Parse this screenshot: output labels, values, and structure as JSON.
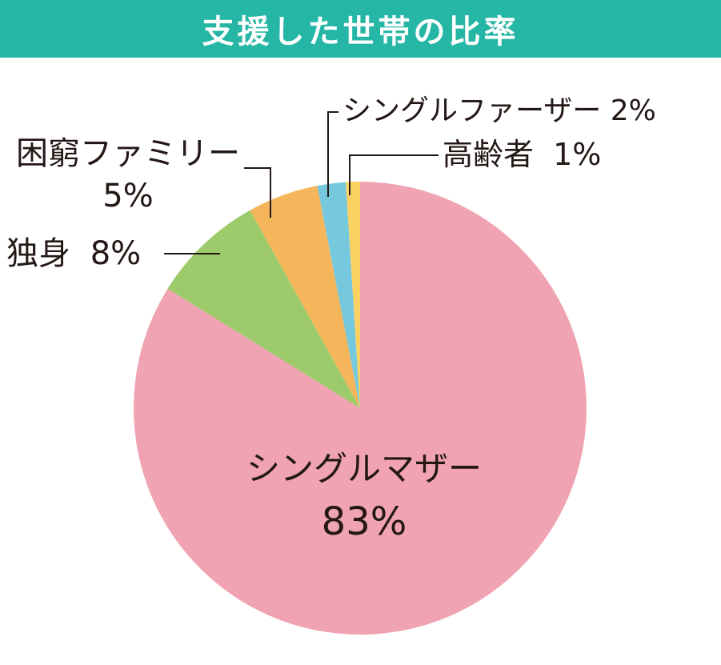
{
  "title": "支援した世帯の比率",
  "colors": {
    "title_bg": "#25b6a5",
    "title_text": "#ffffff",
    "label_text": "#231815",
    "leader_line": "#231815"
  },
  "chart_data": {
    "type": "pie",
    "start": "12 o'clock",
    "direction": "clockwise",
    "slices": [
      {
        "label": "シングルマザー",
        "value_label": "83%",
        "value": 83,
        "color": "#f0a3b2"
      },
      {
        "label": "独身",
        "value_label": "8%",
        "value": 8,
        "color": "#9dcb6b"
      },
      {
        "label": "困窮ファミリー",
        "value_label": "5%",
        "value": 5,
        "color": "#f5b55b"
      },
      {
        "label": "シングルファーザー",
        "value_label": "2%",
        "value": 2,
        "color": "#76c8dd"
      },
      {
        "label": "高齢者",
        "value_label": "1%",
        "value": 1,
        "color": "#fcd164"
      }
    ]
  }
}
